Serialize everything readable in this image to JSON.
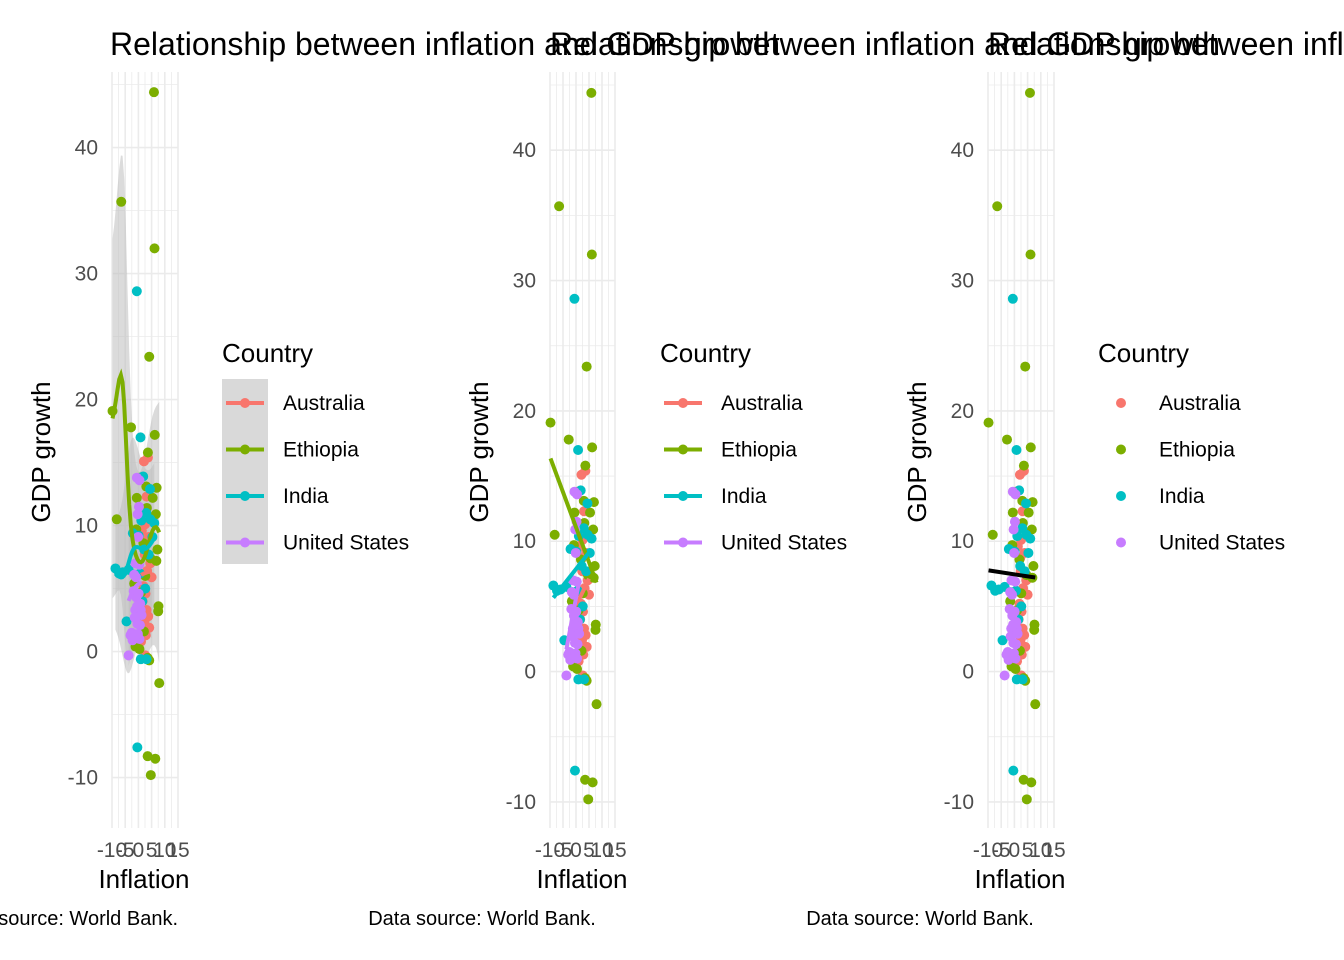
{
  "chart_data": [
    {
      "type": "scatter",
      "title": "Relationship between inflation and GDP growth",
      "caption": "Data source: World Bank.",
      "xlabel": "Inflation",
      "ylabel": "GDP growth",
      "xlim": [
        -10,
        15
      ],
      "ylim": [
        -14,
        46
      ],
      "x_tick_labels": [
        "-10",
        "-5",
        "0",
        "5",
        "10",
        "15"
      ],
      "y_tick_labels": [
        "-10",
        "0",
        "10",
        "20",
        "30",
        "40"
      ],
      "grid": true,
      "legend": {
        "title": "Country",
        "placement": "right",
        "key": "line-point",
        "key_background": true,
        "entries": [
          "Australia",
          "Ethiopia",
          "India",
          "United States"
        ]
      },
      "fit": "loess-by-country",
      "confidence_band": true
    },
    {
      "type": "scatter",
      "title": "Relationship between inflation and GDP growth",
      "caption": "Data source: World Bank.",
      "xlabel": "Inflation",
      "ylabel": "GDP growth",
      "xlim": [
        -10,
        15
      ],
      "ylim": [
        -12,
        46
      ],
      "x_tick_labels": [
        "-10",
        "-5",
        "0",
        "5",
        "10",
        "15"
      ],
      "y_tick_labels": [
        "-10",
        "0",
        "10",
        "20",
        "30",
        "40"
      ],
      "grid": true,
      "legend": {
        "title": "Country",
        "placement": "right",
        "key": "line-point",
        "key_background": false,
        "entries": [
          "Australia",
          "Ethiopia",
          "India",
          "United States"
        ]
      },
      "fit": "linear-by-country",
      "confidence_band": false
    },
    {
      "type": "scatter",
      "title": "Relationship between inflation and GDP growth",
      "caption": "Data source: World Bank.",
      "xlabel": "Inflation",
      "ylabel": "GDP growth",
      "xlim": [
        -10,
        15
      ],
      "ylim": [
        -12,
        46
      ],
      "x_tick_labels": [
        "-10",
        "-5",
        "0",
        "5",
        "10",
        "15"
      ],
      "y_tick_labels": [
        "-10",
        "0",
        "10",
        "20",
        "30",
        "40"
      ],
      "grid": true,
      "legend": {
        "title": "Country",
        "placement": "right",
        "key": "point",
        "key_background": false,
        "entries": [
          "Australia",
          "Ethiopia",
          "India",
          "United States"
        ]
      },
      "fit": "linear-overall",
      "confidence_band": false
    }
  ],
  "colors": {
    "Australia": "#F8766D",
    "Ethiopia": "#7CAE00",
    "India": "#00BFC4",
    "United States": "#C77CFF",
    "overall_fit": "#000000",
    "band": "#BEBEBE",
    "grid": "#EBEBEB"
  },
  "points": {
    "Australia": [
      [
        2.1,
        15.1
      ],
      [
        3.6,
        15.4
      ],
      [
        2.5,
        10.1
      ],
      [
        3.1,
        12.3
      ],
      [
        1.3,
        9.6
      ],
      [
        2.2,
        8.7
      ],
      [
        4.5,
        7.0
      ],
      [
        3.3,
        6.4
      ],
      [
        1.9,
        5.2
      ],
      [
        2.7,
        4.6
      ],
      [
        3.1,
        3.3
      ],
      [
        1.5,
        3.0
      ],
      [
        2.3,
        2.4
      ],
      [
        4.1,
        1.9
      ],
      [
        2.8,
        1.3
      ],
      [
        1.0,
        0.8
      ],
      [
        2.6,
        -0.3
      ],
      [
        3.7,
        2.8
      ],
      [
        1.6,
        4.0
      ],
      [
        2.4,
        7.7
      ],
      [
        5.0,
        5.9
      ],
      [
        3.9,
        9.1
      ]
    ],
    "Ethiopia": [
      [
        -9.8,
        19.1
      ],
      [
        -8.2,
        10.5
      ],
      [
        -6.5,
        35.7
      ],
      [
        -2.8,
        17.8
      ],
      [
        5.9,
        44.4
      ],
      [
        6.1,
        32.0
      ],
      [
        4.1,
        23.4
      ],
      [
        6.2,
        17.2
      ],
      [
        3.6,
        15.8
      ],
      [
        3.0,
        13.1
      ],
      [
        6.9,
        13.0
      ],
      [
        5.4,
        12.2
      ],
      [
        6.6,
        10.9
      ],
      [
        7.2,
        8.1
      ],
      [
        4.6,
        7.4
      ],
      [
        6.8,
        7.2
      ],
      [
        7.6,
        3.6
      ],
      [
        7.5,
        3.2
      ],
      [
        7.9,
        -2.5
      ],
      [
        3.5,
        -0.5
      ],
      [
        4.1,
        -0.7
      ],
      [
        3.5,
        -8.3
      ],
      [
        6.4,
        -8.5
      ],
      [
        4.7,
        -9.8
      ],
      [
        -1.1,
        0.4
      ],
      [
        2.1,
        1.6
      ],
      [
        -0.6,
        12.2
      ],
      [
        0.5,
        13.8
      ],
      [
        2.6,
        6.0
      ],
      [
        1.0,
        4.7
      ],
      [
        -1.6,
        5.4
      ],
      [
        0.4,
        0.2
      ],
      [
        1.9,
        8.6
      ],
      [
        -0.8,
        9.7
      ],
      [
        3.2,
        11.4
      ]
    ],
    "India": [
      [
        -8.7,
        6.6
      ],
      [
        -7.3,
        6.2
      ],
      [
        -5.9,
        6.3
      ],
      [
        -0.6,
        28.6
      ],
      [
        0.8,
        17.0
      ],
      [
        -2.1,
        9.4
      ],
      [
        -3.7,
        6.5
      ],
      [
        1.8,
        13.9
      ],
      [
        3.0,
        11.0
      ],
      [
        1.1,
        10.4
      ],
      [
        4.5,
        10.5
      ],
      [
        -1.4,
        6.1
      ],
      [
        0.1,
        9.2
      ],
      [
        2.2,
        8.1
      ],
      [
        3.9,
        7.7
      ],
      [
        0.6,
        6.2
      ],
      [
        5.3,
        9.1
      ],
      [
        4.4,
        12.9
      ],
      [
        2.6,
        5.0
      ],
      [
        0.9,
        -0.6
      ],
      [
        3.1,
        -0.6
      ],
      [
        -0.4,
        -7.6
      ],
      [
        -4.5,
        2.4
      ],
      [
        6.0,
        10.2
      ],
      [
        1.5,
        4.0
      ]
    ],
    "United States": [
      [
        -3.0,
        1.3
      ],
      [
        -3.7,
        -0.3
      ],
      [
        -2.5,
        1.5
      ],
      [
        -1.8,
        4.8
      ],
      [
        -0.9,
        5.9
      ],
      [
        -0.1,
        9.1
      ],
      [
        0.4,
        13.6
      ],
      [
        -0.6,
        13.8
      ],
      [
        0.2,
        11.5
      ],
      [
        -0.3,
        10.9
      ],
      [
        -1.2,
        3.3
      ],
      [
        -0.8,
        4.3
      ],
      [
        0.6,
        2.1
      ],
      [
        0.9,
        3.3
      ],
      [
        -0.4,
        2.2
      ],
      [
        0.4,
        1.0
      ],
      [
        0.7,
        3.8
      ],
      [
        -2.2,
        0.9
      ],
      [
        -1.6,
        6.1
      ],
      [
        0.3,
        6.9
      ],
      [
        -1.4,
        2.7
      ],
      [
        1.2,
        2.9
      ],
      [
        -0.2,
        1.4
      ],
      [
        -1.1,
        7.0
      ],
      [
        0.1,
        4.6
      ],
      [
        -0.5,
        3.6
      ]
    ]
  }
}
